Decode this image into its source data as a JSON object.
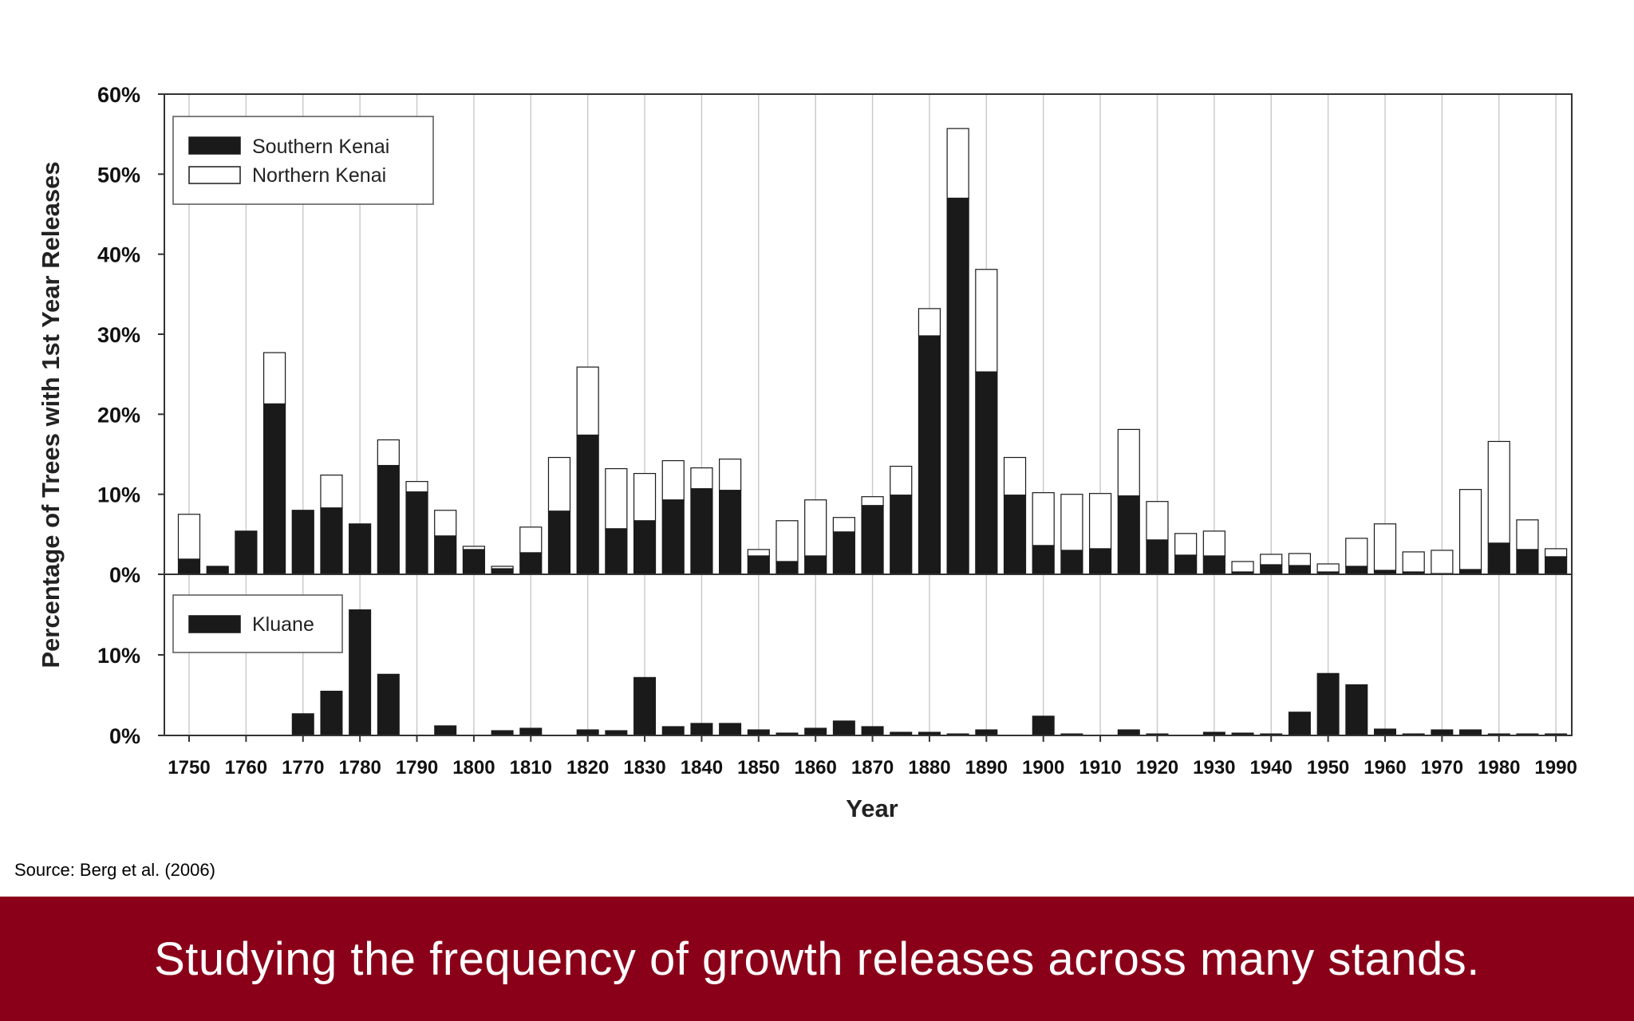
{
  "source": "Source: Berg et al. (2006)",
  "banner": {
    "text": "Studying the frequency of growth releases across many stands."
  },
  "colors": {
    "banner": "#8b0019",
    "southern": "#1a1a1a",
    "northern": "#ffffff",
    "kluane": "#1a1a1a"
  },
  "chart_data": [
    {
      "type": "bar",
      "stacked": true,
      "xlabel": "Year",
      "ylabel": "Percentage of Trees with 1st Year Releases",
      "ylim": [
        0,
        60
      ],
      "yticks": [
        "0%",
        "10%",
        "20%",
        "30%",
        "40%",
        "50%",
        "60%"
      ],
      "grid": "vertical",
      "legend_position": "top-left",
      "x": [
        1750,
        1755,
        1760,
        1765,
        1770,
        1775,
        1780,
        1785,
        1790,
        1795,
        1800,
        1805,
        1810,
        1815,
        1820,
        1825,
        1830,
        1835,
        1840,
        1845,
        1850,
        1855,
        1860,
        1865,
        1870,
        1875,
        1880,
        1885,
        1890,
        1895,
        1900,
        1905,
        1910,
        1915,
        1920,
        1925,
        1930,
        1935,
        1940,
        1945,
        1950,
        1955,
        1960,
        1965,
        1970,
        1975,
        1980,
        1985,
        1990
      ],
      "series": [
        {
          "name": "Southern Kenai",
          "color": "#1a1a1a",
          "values": [
            1.9,
            1.0,
            5.4,
            21.3,
            8.0,
            8.3,
            6.3,
            13.6,
            10.3,
            4.8,
            3.1,
            0.7,
            2.7,
            7.9,
            17.4,
            5.7,
            6.7,
            9.3,
            10.7,
            10.5,
            2.3,
            1.6,
            2.3,
            5.3,
            8.6,
            9.9,
            29.8,
            47.0,
            25.3,
            9.9,
            3.6,
            3.0,
            3.2,
            9.8,
            4.3,
            2.4,
            2.3,
            0.3,
            1.2,
            1.1,
            0.3,
            1.0,
            0.5,
            0.3,
            0.1,
            0.6,
            3.9,
            3.1,
            2.2
          ]
        },
        {
          "name": "Northern Kenai",
          "color": "#ffffff",
          "values": [
            5.6,
            0.0,
            0.0,
            6.4,
            0.0,
            4.1,
            0.0,
            3.2,
            1.3,
            3.2,
            0.4,
            0.3,
            3.2,
            6.7,
            8.5,
            7.5,
            5.9,
            4.9,
            2.6,
            3.9,
            0.8,
            5.1,
            7.0,
            1.8,
            1.1,
            3.6,
            3.4,
            8.7,
            12.8,
            4.7,
            6.6,
            7.0,
            6.9,
            8.3,
            4.8,
            2.7,
            3.1,
            1.3,
            1.3,
            1.5,
            1.0,
            3.5,
            5.8,
            2.5,
            2.9,
            10.0,
            12.7,
            3.7,
            1.0
          ]
        }
      ]
    },
    {
      "type": "bar",
      "xlabel": "Year",
      "ylabel": "Percentage of Trees with 1st Year Releases",
      "ylim": [
        0,
        20
      ],
      "yticks": [
        "0%",
        "10%"
      ],
      "grid": "vertical",
      "legend_position": "top-left",
      "x": [
        1750,
        1755,
        1760,
        1765,
        1770,
        1775,
        1780,
        1785,
        1790,
        1795,
        1800,
        1805,
        1810,
        1815,
        1820,
        1825,
        1830,
        1835,
        1840,
        1845,
        1850,
        1855,
        1860,
        1865,
        1870,
        1875,
        1880,
        1885,
        1890,
        1895,
        1900,
        1905,
        1910,
        1915,
        1920,
        1925,
        1930,
        1935,
        1940,
        1945,
        1950,
        1955,
        1960,
        1965,
        1970,
        1975,
        1980,
        1985,
        1990
      ],
      "series": [
        {
          "name": "Kluane",
          "color": "#1a1a1a",
          "values": [
            0,
            0,
            0,
            0,
            2.7,
            5.5,
            15.6,
            7.6,
            0,
            1.2,
            0,
            0.6,
            0.9,
            0,
            0.7,
            0.6,
            7.2,
            1.1,
            1.5,
            1.5,
            0.7,
            0.3,
            0.9,
            1.8,
            1.1,
            0.4,
            0.4,
            0.2,
            0.7,
            0,
            2.4,
            0.2,
            0,
            0.7,
            0.2,
            0,
            0.4,
            0.3,
            0.2,
            2.9,
            7.7,
            6.3,
            0.8,
            0.2,
            0.7,
            0.7,
            0.2,
            0.2,
            0.2
          ]
        }
      ]
    }
  ],
  "xticks": [
    "1750",
    "1760",
    "1770",
    "1780",
    "1790",
    "1800",
    "1810",
    "1820",
    "1830",
    "1840",
    "1850",
    "1860",
    "1870",
    "1880",
    "1890",
    "1900",
    "1910",
    "1920",
    "1930",
    "1940",
    "1950",
    "1960",
    "1970",
    "1980",
    "1990"
  ]
}
